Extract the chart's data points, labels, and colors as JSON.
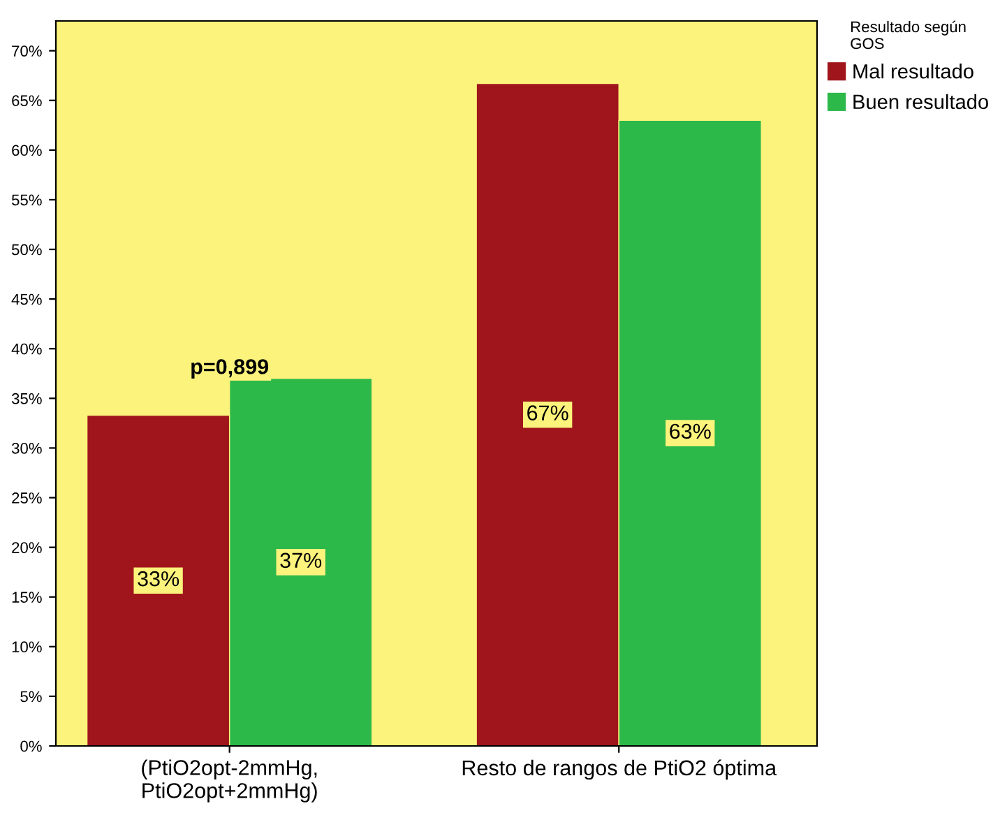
{
  "chart_data": {
    "type": "bar",
    "legend_title": "Resultado según\nGOS",
    "legend": "top right",
    "categories": [
      "(PtiO2opt-2mmHg,\nPtiO2opt+2mmHg)",
      "Resto de rangos de PtiO2 óptima"
    ],
    "series": [
      {
        "name": "Mal resultado",
        "color": "#a0151c",
        "values": [
          33.3,
          66.7
        ],
        "value_labels": [
          "33%",
          "67%"
        ]
      },
      {
        "name": "Buen resultado",
        "color": "#2db84a",
        "values": [
          37.0,
          63.0
        ],
        "value_labels": [
          "37%",
          "63%"
        ]
      }
    ],
    "ylim": [
      0,
      73
    ],
    "yticks": [
      {
        "value": 0,
        "label": "0%"
      },
      {
        "value": 5,
        "label": "5%"
      },
      {
        "value": 10,
        "label": "10%"
      },
      {
        "value": 15,
        "label": "15%"
      },
      {
        "value": 20,
        "label": "20%"
      },
      {
        "value": 25,
        "label": "25%"
      },
      {
        "value": 30,
        "label": "30%"
      },
      {
        "value": 35,
        "label": "35%"
      },
      {
        "value": 40,
        "label": "40%"
      },
      {
        "value": 45,
        "label": "45%"
      },
      {
        "value": 50,
        "label": "50%"
      },
      {
        "value": 55,
        "label": "55%"
      },
      {
        "value": 60,
        "label": "60%"
      },
      {
        "value": 65,
        "label": "65%"
      },
      {
        "value": 70,
        "label": "70%"
      }
    ],
    "annotations": [
      {
        "text": "p=0,899",
        "x": "(PtiO2opt-2mmHg,\nPtiO2opt+2mmHg)",
        "y": 37
      }
    ],
    "grid": false
  }
}
